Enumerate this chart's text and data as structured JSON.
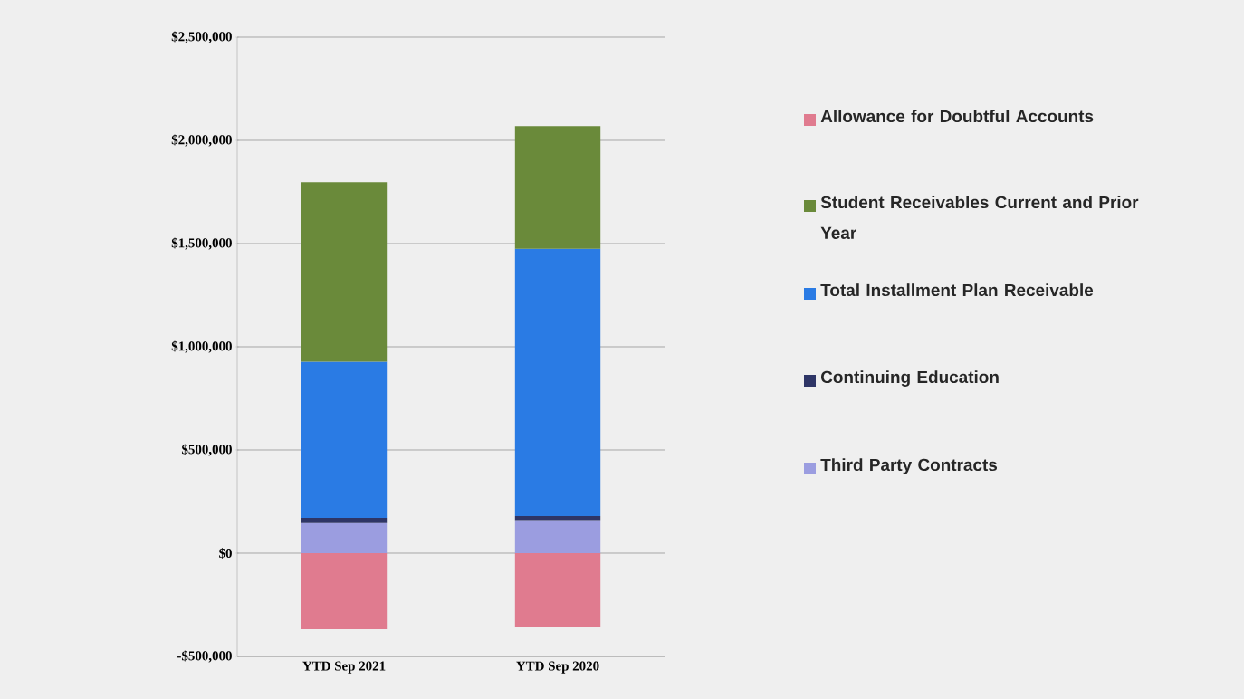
{
  "chart_data": {
    "type": "bar",
    "stacked": true,
    "categories": [
      "YTD Sep 2021",
      "YTD Sep 2020"
    ],
    "series": [
      {
        "name": "Third Party Contracts",
        "color": "#9b9de0",
        "values": [
          146000,
          160000
        ]
      },
      {
        "name": "Continuing Education",
        "color": "#2e3566",
        "values": [
          25000,
          20000
        ]
      },
      {
        "name": "Total Installment Plan Receivable",
        "color": "#2a7be4",
        "values": [
          757000,
          1295000
        ]
      },
      {
        "name": "Student Receivables Current and Prior Year",
        "color": "#6a8a3a",
        "values": [
          869000,
          594000
        ]
      },
      {
        "name": "Allowance for Doubtful Accounts",
        "color": "#e07b8f",
        "values": [
          -368000,
          -358000
        ]
      }
    ],
    "ylim": [
      -500000,
      2500000
    ],
    "yticks": [
      {
        "value": -500000,
        "label": "-$500,000"
      },
      {
        "value": 0,
        "label": "$0"
      },
      {
        "value": 500000,
        "label": "$500,000"
      },
      {
        "value": 1000000,
        "label": "$1,000,000"
      },
      {
        "value": 1500000,
        "label": "$1,500,000"
      },
      {
        "value": 2000000,
        "label": "$2,000,000"
      },
      {
        "value": 2500000,
        "label": "$2,500,000"
      }
    ],
    "grid": "y",
    "legend": "right"
  }
}
